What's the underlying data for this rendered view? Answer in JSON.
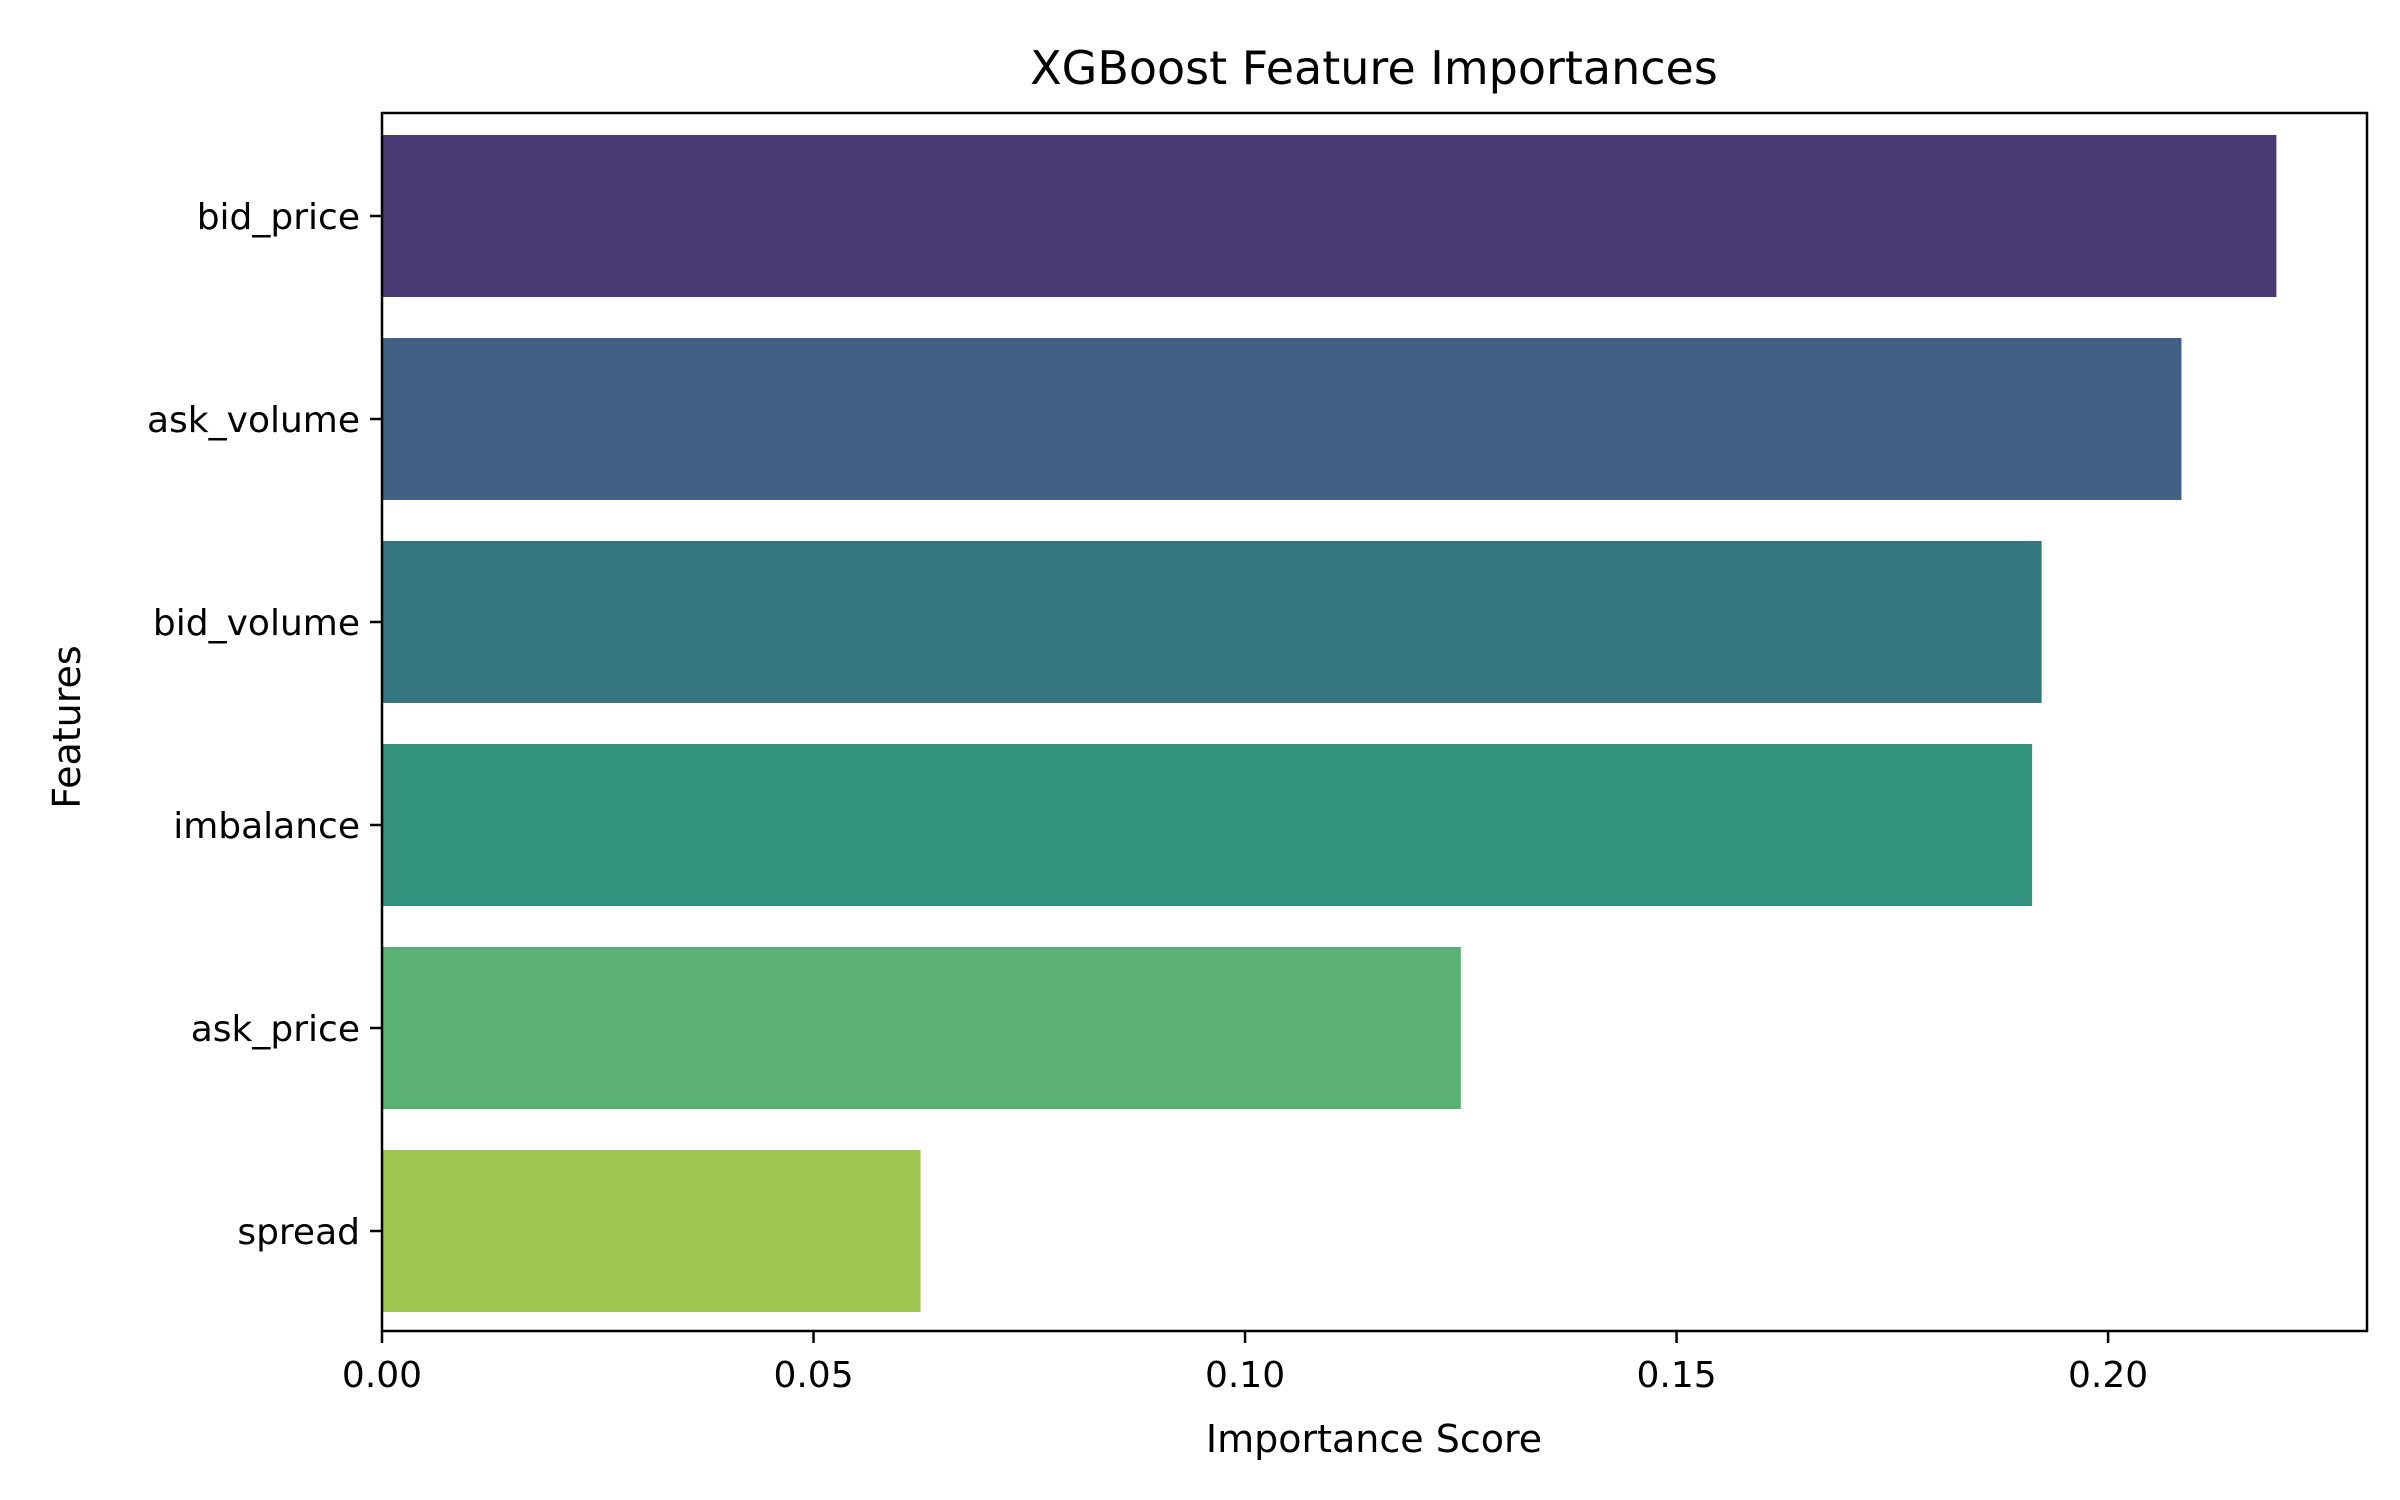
{
  "chart_data": {
    "type": "bar",
    "orientation": "horizontal",
    "title": "XGBoost Feature Importances",
    "xlabel": "Importance Score",
    "ylabel": "Features",
    "xlim": [
      0,
      0.23
    ],
    "xticks": [
      "0.00",
      "0.05",
      "0.10",
      "0.15",
      "0.20"
    ],
    "xtick_values": [
      0,
      0.05,
      0.1,
      0.15,
      0.2
    ],
    "grid": false,
    "categories": [
      "bid_price",
      "ask_volume",
      "bid_volume",
      "imbalance",
      "ask_price",
      "spread"
    ],
    "values": [
      0.2195,
      0.2085,
      0.1923,
      0.1912,
      0.125,
      0.0624
    ],
    "colors": [
      "#4a3a73",
      "#425f84",
      "#357681",
      "#32927e",
      "#5ab173",
      "#9cc650"
    ]
  }
}
